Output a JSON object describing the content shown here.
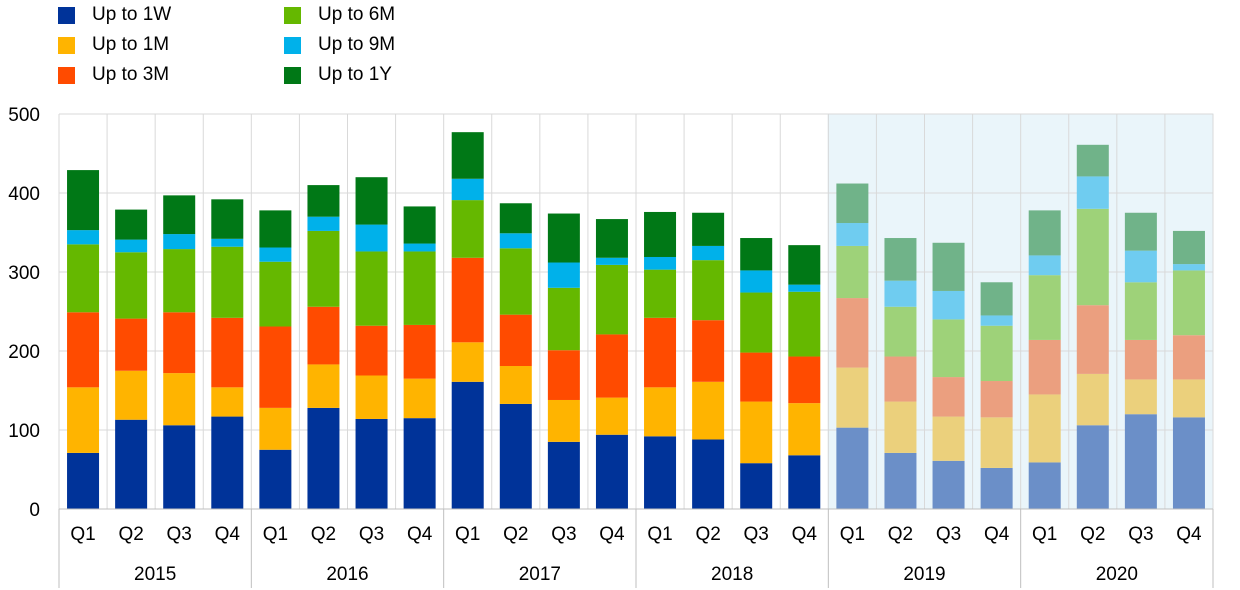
{
  "chart_data": {
    "type": "bar",
    "stacked": true,
    "title": "",
    "xlabel": "",
    "ylabel": "",
    "ylim": [
      0,
      500
    ],
    "yticks": [
      0,
      100,
      200,
      300,
      400,
      500
    ],
    "grid": true,
    "legend_position": "top-left",
    "categories": [
      "Q1",
      "Q2",
      "Q3",
      "Q4",
      "Q1",
      "Q2",
      "Q3",
      "Q4",
      "Q1",
      "Q2",
      "Q3",
      "Q4",
      "Q1",
      "Q2",
      "Q3",
      "Q4",
      "Q1",
      "Q2",
      "Q3",
      "Q4",
      "Q1",
      "Q2",
      "Q3",
      "Q4"
    ],
    "years": [
      "2015",
      "2016",
      "2017",
      "2018",
      "2019",
      "2020"
    ],
    "highlighted_years": [
      "2019",
      "2020"
    ],
    "highlight_color": "#eaf5fa",
    "series": [
      {
        "name": "Up to 1W",
        "color": "#003399",
        "light_color": "#6b8fc8",
        "values": [
          71,
          113,
          106,
          117,
          75,
          128,
          114,
          115,
          161,
          133,
          85,
          94,
          92,
          88,
          58,
          68,
          103,
          71,
          61,
          52,
          59,
          106,
          120,
          116
        ]
      },
      {
        "name": "Up to 1M",
        "color": "#ffb400",
        "light_color": "#ebd07c",
        "values": [
          83,
          62,
          66,
          37,
          53,
          55,
          55,
          50,
          50,
          48,
          53,
          47,
          62,
          73,
          78,
          66,
          76,
          65,
          56,
          64,
          86,
          65,
          44,
          48
        ]
      },
      {
        "name": "Up to 3M",
        "color": "#ff4b00",
        "light_color": "#eb9f7f",
        "values": [
          95,
          66,
          77,
          88,
          103,
          73,
          63,
          68,
          107,
          65,
          63,
          80,
          88,
          78,
          62,
          59,
          88,
          57,
          50,
          46,
          69,
          87,
          50,
          56
        ]
      },
      {
        "name": "Up to 6M",
        "color": "#65b800",
        "light_color": "#9ed279",
        "values": [
          86,
          84,
          80,
          90,
          82,
          96,
          94,
          93,
          73,
          84,
          79,
          88,
          61,
          76,
          76,
          82,
          66,
          63,
          73,
          70,
          82,
          122,
          73,
          82
        ]
      },
      {
        "name": "Up to 9M",
        "color": "#00b1ea",
        "light_color": "#6fccf0",
        "values": [
          18,
          16,
          19,
          10,
          18,
          18,
          34,
          10,
          27,
          19,
          32,
          9,
          16,
          18,
          28,
          9,
          29,
          33,
          36,
          13,
          25,
          41,
          40,
          8
        ]
      },
      {
        "name": "Up to 1Y",
        "color": "#007816",
        "light_color": "#70b389",
        "values": [
          76,
          38,
          49,
          50,
          47,
          40,
          60,
          47,
          59,
          38,
          62,
          49,
          57,
          42,
          41,
          50,
          50,
          54,
          61,
          42,
          57,
          40,
          48,
          42
        ]
      }
    ]
  }
}
